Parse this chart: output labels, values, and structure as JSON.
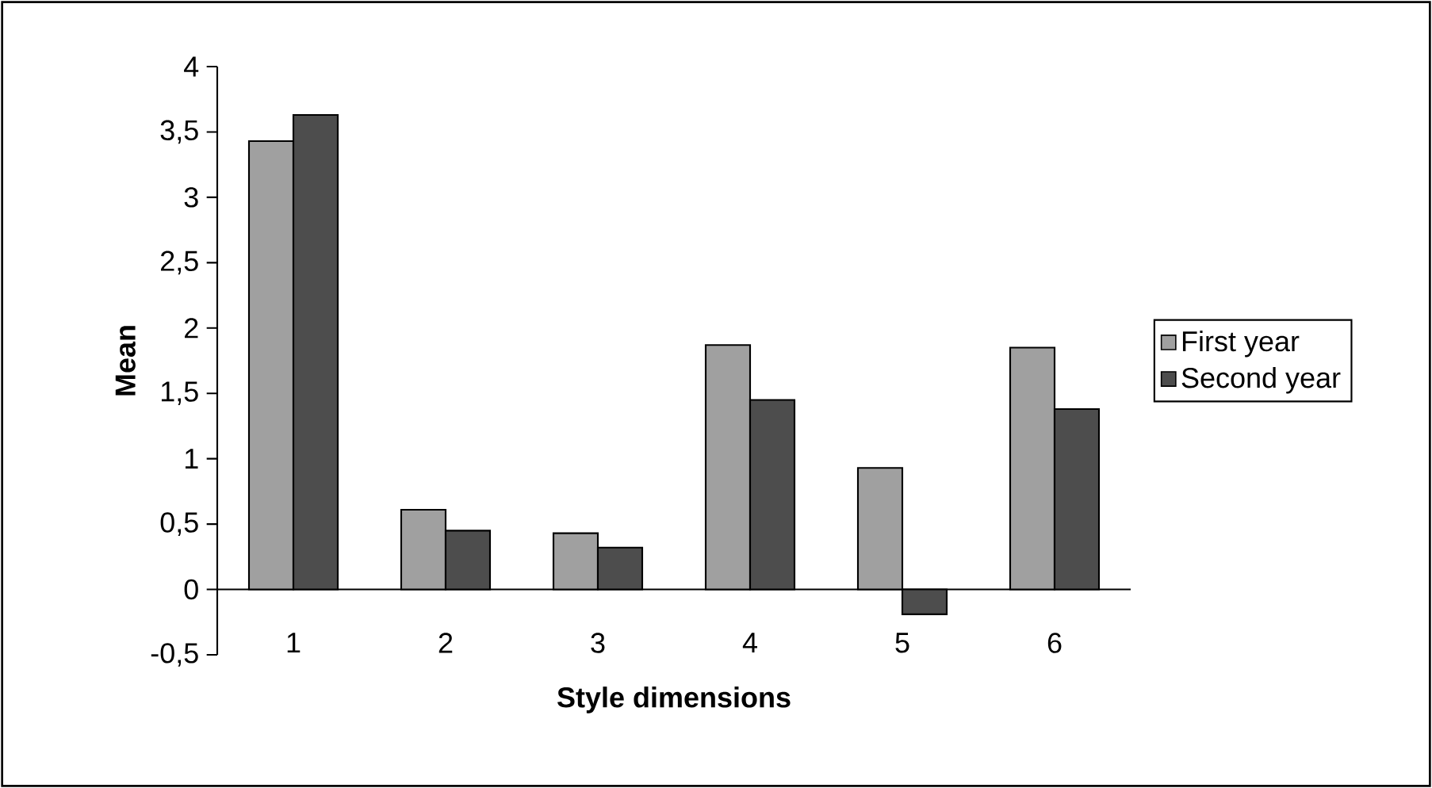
{
  "chart_data": {
    "type": "bar",
    "xlabel": "Style dimensions",
    "ylabel": "Mean",
    "categories": [
      "1",
      "2",
      "3",
      "4",
      "5",
      "6"
    ],
    "series": [
      {
        "name": "First year",
        "color": "#a0a0a0",
        "values": [
          3.43,
          0.61,
          0.43,
          1.87,
          0.93,
          1.85
        ]
      },
      {
        "name": "Second year",
        "color": "#4d4d4d",
        "values": [
          3.63,
          0.45,
          0.32,
          1.45,
          -0.19,
          1.38
        ]
      }
    ],
    "ylim": [
      -0.5,
      4
    ],
    "yticks": [
      {
        "value": -0.5,
        "label": "-0,5"
      },
      0,
      {
        "value": 0.5,
        "label": "0,5"
      },
      1,
      {
        "value": 1.5,
        "label": "1,5"
      },
      2,
      {
        "value": 2.5,
        "label": "2,5"
      },
      3,
      {
        "value": 3.5,
        "label": "3,5"
      },
      4
    ],
    "legend": "right",
    "grid": false
  }
}
